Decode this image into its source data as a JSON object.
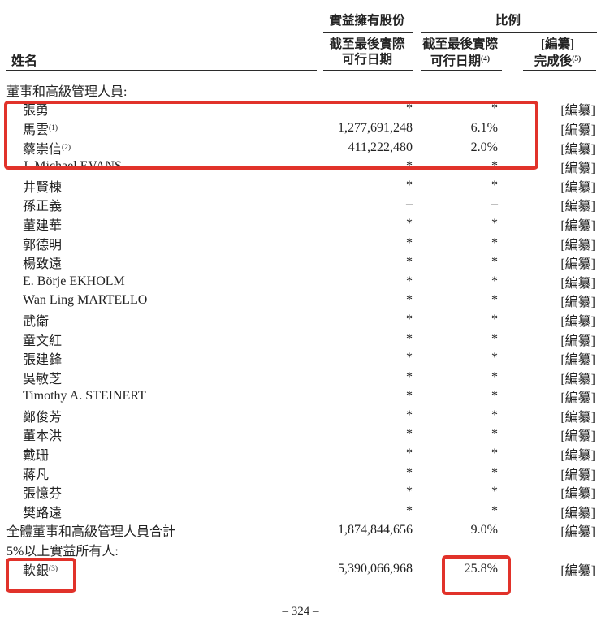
{
  "page": {
    "footer": "– 324 –"
  },
  "table": {
    "name_header": "姓名",
    "col_groups": {
      "shares": "實益擁有股份",
      "ratio": "比例"
    },
    "sub_headers": {
      "shares_line1": "截至最後實際",
      "shares_line2": "可行日期",
      "ratio_current_line1": "截至最後實際",
      "ratio_current_line2": "可行日期",
      "ratio_current_sup": "(4)",
      "ratio_after_line1": "[編纂]",
      "ratio_after_line2": "完成後",
      "ratio_after_sup": "(5)"
    },
    "rows": [
      {
        "type": "section",
        "name": "董事和高級管理人員:",
        "sup": "",
        "shares": "",
        "pct": "",
        "after": ""
      },
      {
        "type": "entry",
        "name": "張勇",
        "sup": "",
        "shares": "*",
        "pct": "*",
        "after": "[編纂]"
      },
      {
        "type": "entry",
        "name": "馬雲",
        "sup": "(1)",
        "shares": "1,277,691,248",
        "pct": "6.1%",
        "after": "[編纂]"
      },
      {
        "type": "entry",
        "name": "蔡崇信",
        "sup": "(2)",
        "shares": "411,222,480",
        "pct": "2.0%",
        "after": "[編纂]"
      },
      {
        "type": "entry",
        "name": "J. Michael EVANS",
        "sup": "",
        "shares": "*",
        "pct": "*",
        "after": "[編纂]"
      },
      {
        "type": "entry",
        "name": "井賢棟",
        "sup": "",
        "shares": "*",
        "pct": "*",
        "after": "[編纂]"
      },
      {
        "type": "entry",
        "name": "孫正義",
        "sup": "",
        "shares": "–",
        "pct": "–",
        "after": "[編纂]"
      },
      {
        "type": "entry",
        "name": "董建華",
        "sup": "",
        "shares": "*",
        "pct": "*",
        "after": "[編纂]"
      },
      {
        "type": "entry",
        "name": "郭德明",
        "sup": "",
        "shares": "*",
        "pct": "*",
        "after": "[編纂]"
      },
      {
        "type": "entry",
        "name": "楊致遠",
        "sup": "",
        "shares": "*",
        "pct": "*",
        "after": "[編纂]"
      },
      {
        "type": "entry",
        "name": "E. Börje EKHOLM",
        "sup": "",
        "shares": "*",
        "pct": "*",
        "after": "[編纂]"
      },
      {
        "type": "entry",
        "name": "Wan Ling MARTELLO",
        "sup": "",
        "shares": "*",
        "pct": "*",
        "after": "[編纂]"
      },
      {
        "type": "entry",
        "name": "武衛",
        "sup": "",
        "shares": "*",
        "pct": "*",
        "after": "[編纂]"
      },
      {
        "type": "entry",
        "name": "童文紅",
        "sup": "",
        "shares": "*",
        "pct": "*",
        "after": "[編纂]"
      },
      {
        "type": "entry",
        "name": "張建鋒",
        "sup": "",
        "shares": "*",
        "pct": "*",
        "after": "[編纂]"
      },
      {
        "type": "entry",
        "name": "吳敏芝",
        "sup": "",
        "shares": "*",
        "pct": "*",
        "after": "[編纂]"
      },
      {
        "type": "entry",
        "name": "Timothy A. STEINERT",
        "sup": "",
        "shares": "*",
        "pct": "*",
        "after": "[編纂]"
      },
      {
        "type": "entry",
        "name": "鄭俊芳",
        "sup": "",
        "shares": "*",
        "pct": "*",
        "after": "[編纂]"
      },
      {
        "type": "entry",
        "name": "董本洪",
        "sup": "",
        "shares": "*",
        "pct": "*",
        "after": "[編纂]"
      },
      {
        "type": "entry",
        "name": "戴珊",
        "sup": "",
        "shares": "*",
        "pct": "*",
        "after": "[編纂]"
      },
      {
        "type": "entry",
        "name": "蔣凡",
        "sup": "",
        "shares": "*",
        "pct": "*",
        "after": "[編纂]"
      },
      {
        "type": "entry",
        "name": "張憶芬",
        "sup": "",
        "shares": "*",
        "pct": "*",
        "after": "[編纂]"
      },
      {
        "type": "entry",
        "name": "樊路遠",
        "sup": "",
        "shares": "*",
        "pct": "*",
        "after": "[編纂]"
      },
      {
        "type": "total",
        "name": "全體董事和高級管理人員合計",
        "sup": "",
        "shares": "1,874,844,656",
        "pct": "9.0%",
        "after": "[編纂]"
      },
      {
        "type": "section",
        "name": "5%以上實益所有人:",
        "sup": "",
        "shares": "",
        "pct": "",
        "after": ""
      },
      {
        "type": "entry",
        "name": "軟銀",
        "sup": "(3)",
        "shares": "5,390,066,968",
        "pct": "25.8%",
        "after": "[編纂]"
      }
    ]
  },
  "annotations": {
    "highlight_color": "#e1322a"
  }
}
